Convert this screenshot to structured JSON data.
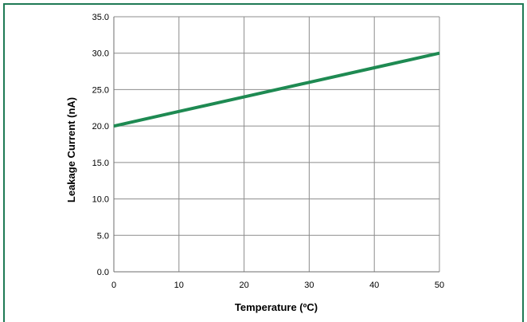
{
  "chart_data": {
    "type": "line",
    "title": "",
    "xlabel": "Temperature (ºC)",
    "ylabel": "Leakage Current (nA)",
    "xlim": [
      0,
      50
    ],
    "ylim": [
      0,
      35
    ],
    "x_ticks": [
      "0",
      "10",
      "20",
      "30",
      "40",
      "50"
    ],
    "y_ticks": [
      "0.0",
      "5.0",
      "10.0",
      "15.0",
      "20.0",
      "25.0",
      "30.0",
      "35.0"
    ],
    "grid": true,
    "legend": "none",
    "series": [
      {
        "color": "#1e8a52",
        "x": [
          0,
          10,
          20,
          30,
          40,
          50
        ],
        "y": [
          20,
          22,
          24,
          26,
          28,
          30
        ]
      }
    ]
  }
}
